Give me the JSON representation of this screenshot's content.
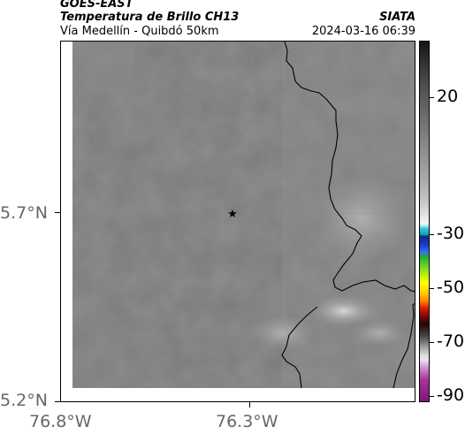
{
  "header": {
    "satellite": "GOES-EAST",
    "product": "Temperatura de Brillo CH13",
    "region": "Vía Medellín - Quibdó 50km",
    "agency": "SIATA",
    "datetime": "2024-03-16 06:39"
  },
  "axes": {
    "y_ticks": [
      "5.7°N",
      "5.2°N"
    ],
    "x_ticks": [
      "76.8°W",
      "76.3°W"
    ]
  },
  "map": {
    "marker_icon": "star-icon",
    "marker_glyph": "★",
    "coastline_color": "#000000",
    "background_color": "#7a7a7a"
  },
  "colorbar": {
    "labels": [
      "20",
      "-30",
      "-50",
      "-70",
      "-90"
    ],
    "colors": [
      "#141414",
      "#f4f4f4",
      "#33c8e0",
      "#1a3cc8",
      "#20b030",
      "#ffff00",
      "#ff8800",
      "#e02000",
      "#200505",
      "#a0a0a0",
      "#aa3399"
    ]
  }
}
